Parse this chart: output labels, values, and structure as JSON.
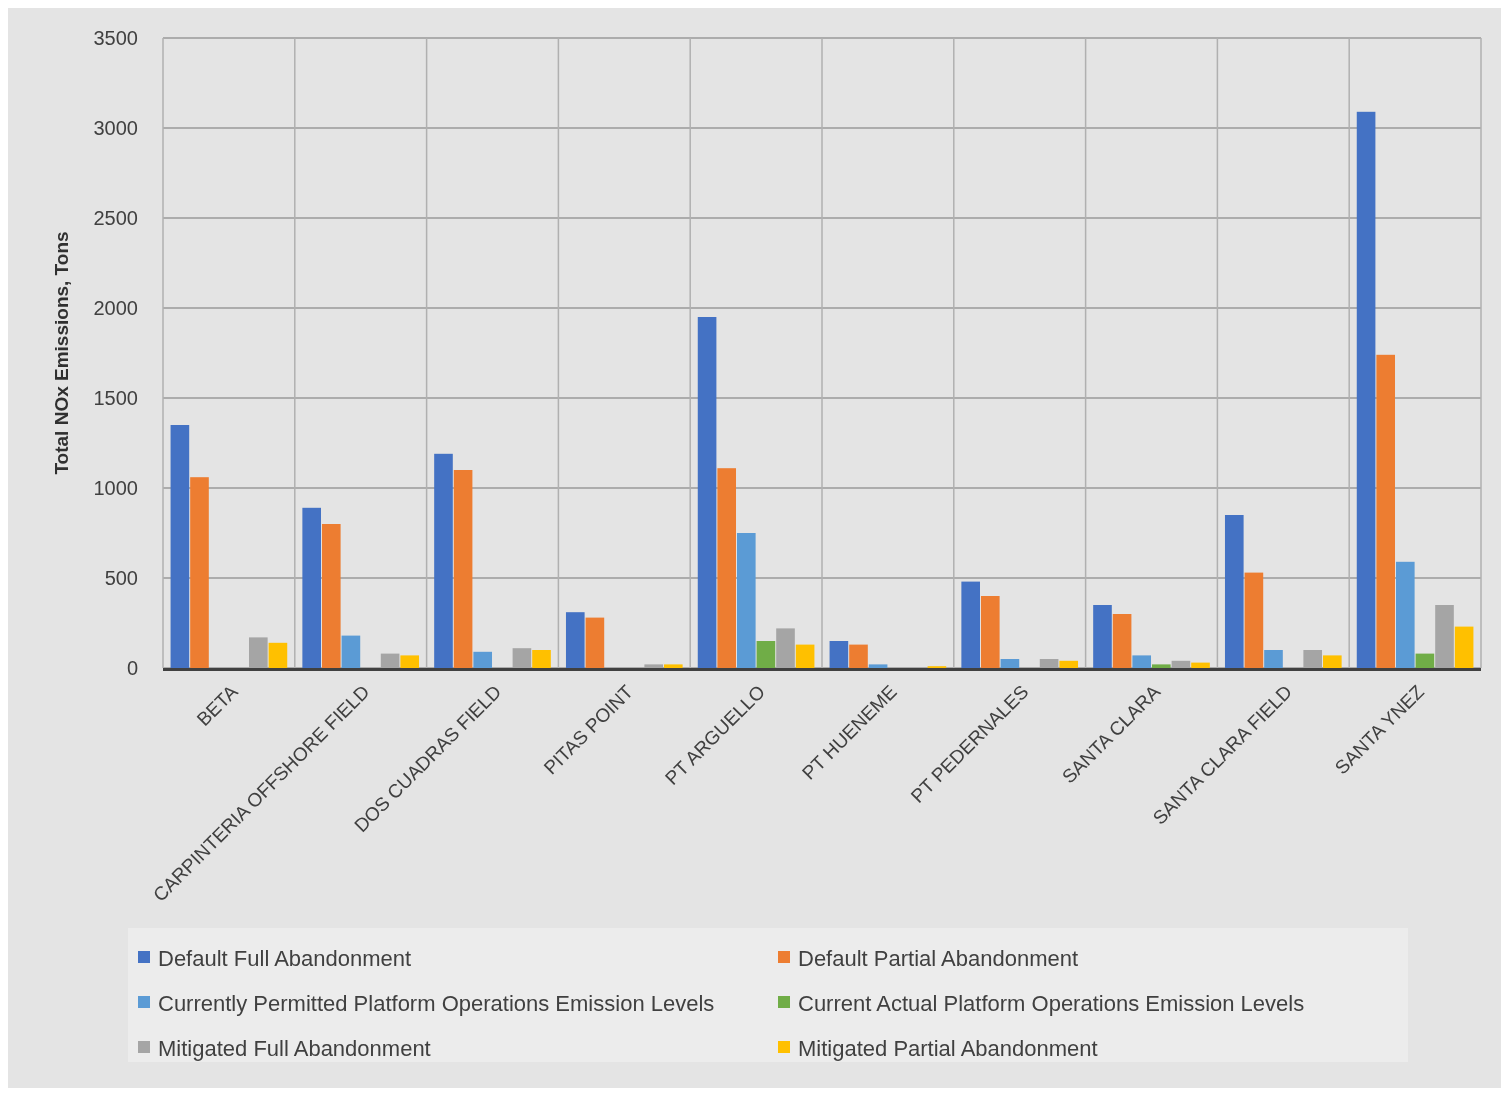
{
  "chart_data": {
    "type": "bar",
    "ylabel": "Total NOx Emissions, Tons",
    "categories": [
      "BETA",
      "CARPINTERIA OFFSHORE FIELD",
      "DOS CUADRAS FIELD",
      "PITAS POINT",
      "PT ARGUELLO",
      "PT HUENEME",
      "PT PEDERNALES",
      "SANTA CLARA",
      "SANTA CLARA FIELD",
      "SANTA YNEZ"
    ],
    "series": [
      {
        "name": "Default Full Abandonment",
        "color": "#4472c4",
        "values": [
          1350,
          890,
          1190,
          310,
          1950,
          150,
          480,
          350,
          850,
          3090
        ]
      },
      {
        "name": "Default Partial Abandonment",
        "color": "#ed7d31",
        "values": [
          1060,
          800,
          1100,
          280,
          1110,
          130,
          400,
          300,
          530,
          1740
        ]
      },
      {
        "name": "Currently Permitted Platform Operations Emission Levels",
        "color": "#5b9bd5",
        "values": [
          0,
          180,
          90,
          0,
          750,
          20,
          50,
          70,
          100,
          590
        ]
      },
      {
        "name": "Current Actual Platform Operations Emission Levels",
        "color": "#70ad47",
        "values": [
          0,
          0,
          0,
          0,
          150,
          0,
          0,
          20,
          0,
          80
        ]
      },
      {
        "name": "Mitigated Full Abandonment",
        "color": "#a5a5a5",
        "values": [
          170,
          80,
          110,
          20,
          220,
          0,
          50,
          40,
          100,
          350
        ]
      },
      {
        "name": "Mitigated Partial Abandonment",
        "color": "#ffc000",
        "values": [
          140,
          70,
          100,
          20,
          130,
          10,
          40,
          30,
          70,
          230
        ]
      }
    ],
    "ylim": [
      0,
      3500
    ],
    "yticks": [
      0,
      500,
      1000,
      1500,
      2000,
      2500,
      3000,
      3500
    ],
    "grid": true,
    "legend": "bottom"
  }
}
